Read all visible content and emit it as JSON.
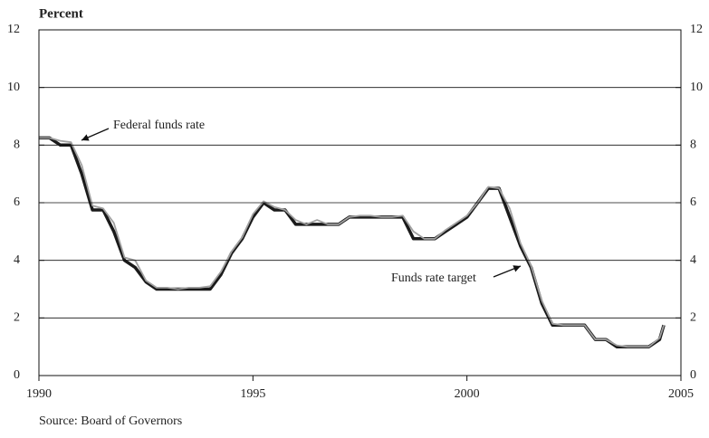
{
  "chart_data": {
    "type": "line",
    "y_label": "Percent",
    "source": "Source: Board of Governors",
    "annotations": [
      "Federal funds rate",
      "Funds rate target"
    ],
    "x": [
      1990,
      1990.25,
      1990.5,
      1990.75,
      1991,
      1991.25,
      1991.5,
      1991.75,
      1992,
      1992.25,
      1992.5,
      1992.75,
      1993,
      1993.25,
      1993.5,
      1993.75,
      1994,
      1994.25,
      1994.5,
      1994.75,
      1995,
      1995.25,
      1995.5,
      1995.75,
      1996,
      1996.25,
      1996.5,
      1996.75,
      1997,
      1997.25,
      1997.5,
      1997.75,
      1998,
      1998.25,
      1998.5,
      1998.75,
      1999,
      1999.25,
      1999.5,
      1999.75,
      2000,
      2000.25,
      2000.5,
      2000.75,
      2001,
      2001.25,
      2001.5,
      2001.75,
      2002,
      2002.25,
      2002.5,
      2002.75,
      2003,
      2003.25,
      2003.5,
      2003.75,
      2004,
      2004.25,
      2004.5,
      2004.6
    ],
    "series": [
      {
        "name": "Funds rate target",
        "color": "#1a1a1a",
        "values": [
          8.25,
          8.25,
          8.0,
          8.0,
          7.0,
          5.75,
          5.75,
          5.0,
          4.0,
          3.75,
          3.25,
          3.0,
          3.0,
          3.0,
          3.0,
          3.0,
          3.0,
          3.5,
          4.25,
          4.75,
          5.5,
          6.0,
          5.75,
          5.75,
          5.25,
          5.25,
          5.25,
          5.25,
          5.25,
          5.5,
          5.5,
          5.5,
          5.5,
          5.5,
          5.5,
          4.75,
          4.75,
          4.75,
          5.0,
          5.25,
          5.5,
          6.0,
          6.5,
          6.5,
          5.5,
          4.5,
          3.75,
          2.5,
          1.75,
          1.75,
          1.75,
          1.75,
          1.25,
          1.25,
          1.0,
          1.0,
          1.0,
          1.0,
          1.25,
          1.75
        ]
      },
      {
        "name": "Federal funds rate",
        "color": "#a0a0a0",
        "values": [
          8.25,
          8.25,
          8.15,
          8.1,
          7.3,
          5.9,
          5.8,
          5.3,
          4.1,
          4.0,
          3.3,
          3.05,
          3.05,
          3.0,
          3.05,
          3.05,
          3.1,
          3.6,
          4.3,
          4.8,
          5.6,
          6.05,
          5.85,
          5.75,
          5.4,
          5.25,
          5.4,
          5.25,
          5.25,
          5.5,
          5.55,
          5.55,
          5.5,
          5.5,
          5.55,
          5.0,
          4.75,
          4.75,
          5.05,
          5.3,
          5.55,
          6.0,
          6.55,
          6.5,
          5.8,
          4.6,
          3.8,
          2.6,
          1.8,
          1.75,
          1.75,
          1.75,
          1.25,
          1.25,
          1.05,
          1.0,
          1.0,
          1.0,
          1.3,
          1.75
        ]
      }
    ],
    "xlim": [
      1990,
      2005
    ],
    "xticks": [
      1990,
      1995,
      2000,
      2005
    ],
    "ylim": [
      0,
      12
    ],
    "yticks": [
      0,
      2,
      4,
      6,
      8,
      10,
      12
    ],
    "y2lim": [
      0,
      12
    ],
    "y2ticks": [
      0,
      2,
      4,
      6,
      8,
      10,
      12
    ],
    "grid": true
  }
}
